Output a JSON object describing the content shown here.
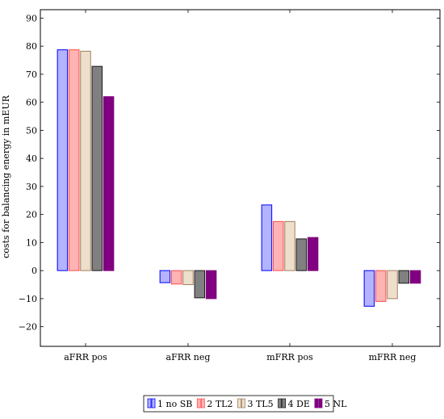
{
  "chart_data": {
    "type": "bar",
    "categories": [
      "aFRR pos",
      "aFRR neg",
      "mFRR pos",
      "mFRR neg"
    ],
    "series": [
      {
        "name": "1 no SB",
        "color": "#b3b3ff",
        "stroke": "#0000ff",
        "values": [
          78.7,
          -4.3,
          23.4,
          -12.7
        ]
      },
      {
        "name": "2 TL2",
        "color": "#ffb3b3",
        "stroke": "#ff4d4d",
        "values": [
          78.7,
          -4.8,
          17.5,
          -11.0
        ]
      },
      {
        "name": "3 TL5",
        "color": "#eedfcc",
        "stroke": "#a08060",
        "values": [
          78.2,
          -5.0,
          17.5,
          -10.0
        ]
      },
      {
        "name": "4 DE",
        "color": "#808080",
        "stroke": "#1a1a1a",
        "values": [
          72.8,
          -9.7,
          11.3,
          -4.5
        ]
      },
      {
        "name": "5 NL",
        "color": "#800080",
        "stroke": "#800080",
        "values": [
          62.0,
          -10.0,
          11.8,
          -4.5
        ]
      }
    ],
    "xlabel": "",
    "ylabel": "costs for balancing energy in mEUR",
    "ylim": [
      -27,
      93
    ],
    "yticks": [
      -20,
      -10,
      0,
      10,
      20,
      30,
      40,
      50,
      60,
      70,
      80,
      90
    ],
    "ytick_labels": [
      "−20",
      "−10",
      "0",
      "10",
      "20",
      "30",
      "40",
      "50",
      "60",
      "70",
      "80",
      "90"
    ],
    "grid": false,
    "legend_position": "bottom-center"
  }
}
